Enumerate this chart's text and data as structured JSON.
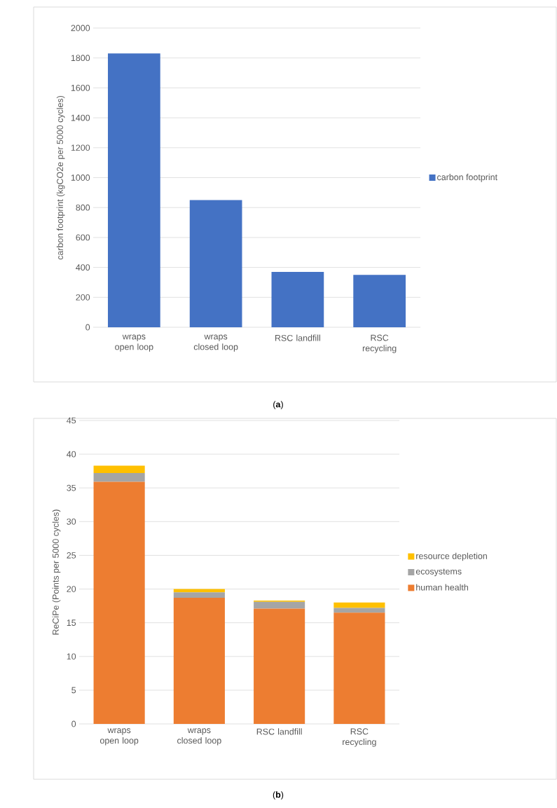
{
  "chart_data": [
    {
      "type": "bar",
      "categories": [
        "wraps open loop",
        "wraps closed loop",
        "RSC landfill",
        "RSC recycling"
      ],
      "ylabel": "carbon footprint (kgCO2e per 5000 cycles)",
      "ylim": [
        0,
        2000
      ],
      "yticks": [
        0,
        200,
        400,
        600,
        800,
        1000,
        1200,
        1400,
        1600,
        1800,
        2000
      ],
      "grid": "y",
      "legend": "right",
      "series": [
        {
          "name": "carbon footprint",
          "color": "#4472c4",
          "values": [
            1830,
            850,
            370,
            350
          ]
        }
      ],
      "annotations": [
        "(**a**)"
      ]
    },
    {
      "type": "bar",
      "stacked": true,
      "categories": [
        "wraps open loop",
        "wraps closed loop",
        "RSC landfill",
        "RSC recycling"
      ],
      "ylabel": "ReCiPe (Points per 5000 cycles)",
      "ylim": [
        0,
        45
      ],
      "yticks": [
        0,
        5,
        10,
        15,
        20,
        25,
        30,
        35,
        40,
        45
      ],
      "grid": "y",
      "legend": "right",
      "series": [
        {
          "name": "human health",
          "color": "#ed7d31",
          "values": [
            35.9,
            18.7,
            17.1,
            16.5
          ]
        },
        {
          "name": "ecosystems",
          "color": "#a5a5a5",
          "values": [
            1.3,
            0.8,
            1.0,
            0.7
          ]
        },
        {
          "name": "resource depletion",
          "color": "#ffc000",
          "values": [
            1.1,
            0.5,
            0.2,
            0.8
          ]
        }
      ],
      "annotations": [
        "(**b**)"
      ]
    }
  ]
}
